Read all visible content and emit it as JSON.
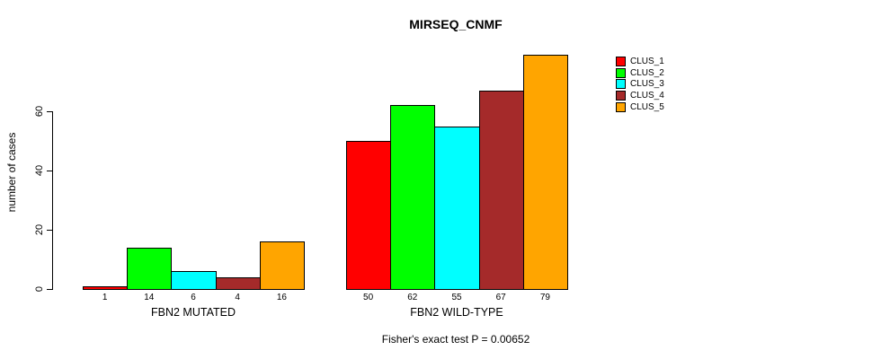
{
  "chart_data": {
    "type": "bar",
    "title": "MIRSEQ_CNMF",
    "ylabel": "number of cases",
    "xlabel": "",
    "yticks": [
      0,
      20,
      40,
      60
    ],
    "ylim": [
      0,
      79
    ],
    "grid": false,
    "legend_position": "right",
    "categories": [
      "FBN2 MUTATED",
      "FBN2 WILD-TYPE"
    ],
    "series": [
      {
        "name": "CLUS_1",
        "color": "#FF0000",
        "values": [
          1,
          50
        ]
      },
      {
        "name": "CLUS_2",
        "color": "#00FF00",
        "values": [
          14,
          62
        ]
      },
      {
        "name": "CLUS_3",
        "color": "#00FFFF",
        "values": [
          6,
          55
        ]
      },
      {
        "name": "CLUS_4",
        "color": "#A52A2A",
        "values": [
          4,
          67
        ]
      },
      {
        "name": "CLUS_5",
        "color": "#FFA500",
        "values": [
          16,
          79
        ]
      }
    ],
    "bar_value_labels": {
      "FBN2 MUTATED": [
        1,
        14,
        6,
        4,
        16
      ],
      "FBN2 WILD-TYPE": [
        50,
        62,
        55,
        67,
        79
      ]
    },
    "annotation": "Fisher's exact test P = 0.00652"
  }
}
